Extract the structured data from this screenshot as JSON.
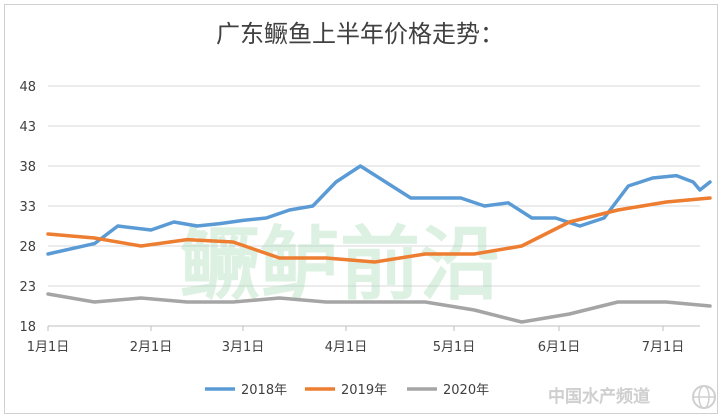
{
  "chart_data": {
    "type": "line",
    "title": "广东鳜鱼上半年价格走势：",
    "xlabel": "",
    "ylabel": "",
    "x_ticks": [
      "1月1日",
      "2月1日",
      "3月1日",
      "4月1日",
      "5月1日",
      "6月1日",
      "7月1日"
    ],
    "y_ticks": [
      18,
      23,
      28,
      33,
      38,
      43,
      48
    ],
    "ylim": [
      18,
      50
    ],
    "grid": "horizontal",
    "legend_position": "bottom",
    "series": [
      {
        "name": "2018年",
        "color": "#5b9bd5",
        "x": [
          "1/1",
          "1/15",
          "1/22",
          "2/1",
          "2/8",
          "2/15",
          "2/22",
          "3/1",
          "3/8",
          "3/15",
          "3/22",
          "3/29",
          "4/5",
          "4/12",
          "4/19",
          "4/26",
          "5/3",
          "5/10",
          "5/17",
          "5/24",
          "5/31",
          "6/7",
          "6/14",
          "6/21",
          "6/28",
          "7/5",
          "7/10",
          "7/12",
          "7/15"
        ],
        "values": [
          27.0,
          28.3,
          30.5,
          30.0,
          31.0,
          30.5,
          30.8,
          31.2,
          31.5,
          32.5,
          33.0,
          36.0,
          38.0,
          36.0,
          34.0,
          34.0,
          34.0,
          33.0,
          33.4,
          31.5,
          31.5,
          30.5,
          31.5,
          35.5,
          36.5,
          36.8,
          36.0,
          35.0,
          36.0
        ]
      },
      {
        "name": "2019年",
        "color": "#ed7d31",
        "x": [
          "1/1",
          "1/15",
          "1/29",
          "2/12",
          "2/26",
          "3/12",
          "3/26",
          "4/9",
          "4/23",
          "5/7",
          "5/21",
          "6/4",
          "6/18",
          "7/2",
          "7/15"
        ],
        "values": [
          29.5,
          29.0,
          28.0,
          28.8,
          28.5,
          26.5,
          26.5,
          26.0,
          27.0,
          27.0,
          28.0,
          31.0,
          32.5,
          33.5,
          34.0
        ]
      },
      {
        "name": "2020年",
        "color": "#a5a5a5",
        "x": [
          "1/1",
          "1/15",
          "1/29",
          "2/12",
          "2/26",
          "3/12",
          "3/26",
          "4/9",
          "4/23",
          "5/7",
          "5/21",
          "6/4",
          "6/18",
          "7/2",
          "7/15"
        ],
        "values": [
          22.0,
          21.0,
          21.5,
          21.0,
          21.0,
          21.5,
          21.0,
          21.0,
          21.0,
          20.0,
          18.5,
          19.5,
          21.0,
          21.0,
          20.5
        ]
      }
    ]
  },
  "watermark_text": "鳜鲈前沿",
  "source_logo_text": "中国水产频道"
}
